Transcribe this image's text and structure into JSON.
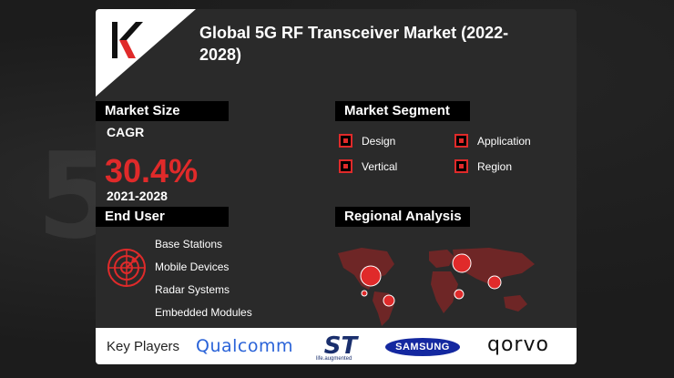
{
  "header": {
    "title": "Global 5G RF Transceiver Market (2022-2028)"
  },
  "market_size": {
    "heading": "Market Size",
    "cagr_label": "CAGR",
    "cagr_value": "30.4%",
    "period": "2021-2028"
  },
  "market_segment": {
    "heading": "Market Segment",
    "items": [
      "Design",
      "Application",
      "Vertical",
      "Region"
    ]
  },
  "end_user": {
    "heading": "End User",
    "items": [
      "Base Stations",
      "Mobile Devices",
      "Radar Systems",
      "Embedded Modules"
    ]
  },
  "regional_analysis": {
    "heading": "Regional Analysis"
  },
  "key_players": {
    "label": "Key Players",
    "brands": [
      "Qualcomm",
      "ST",
      "SAMSUNG",
      "qorvo"
    ],
    "st_tagline": "life.augmented"
  },
  "colors": {
    "accent": "#e02a2a",
    "card": "#2a2a2a",
    "label_bar": "#000000",
    "qualcomm_blue": "#2a63d8",
    "samsung_blue": "#1428a0"
  },
  "icons": [
    "k-logo-icon",
    "checkbox-icon",
    "radar-icon",
    "world-map-icon"
  ]
}
